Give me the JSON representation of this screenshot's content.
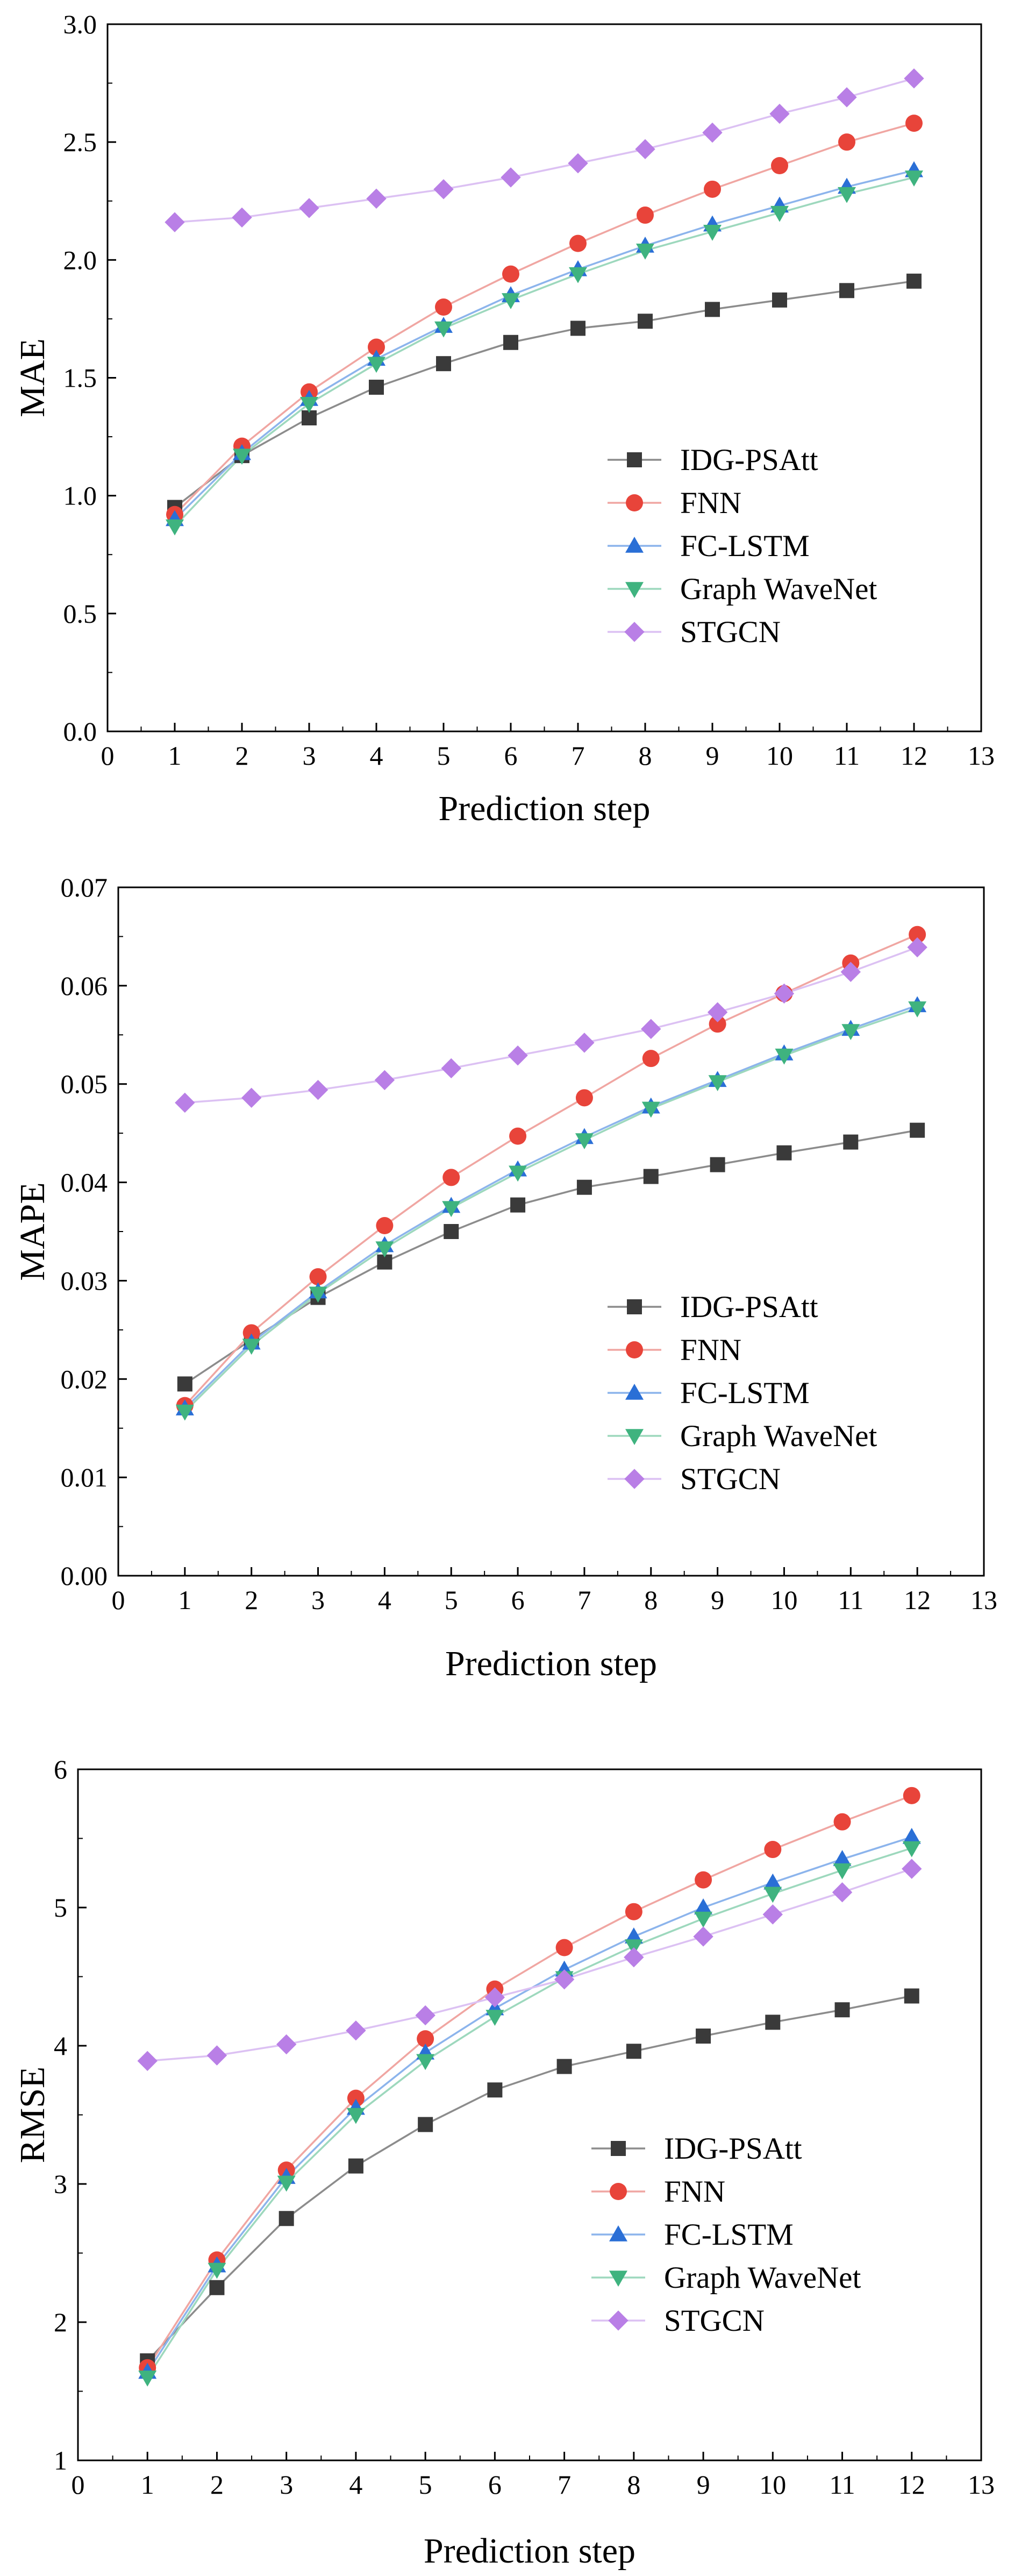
{
  "chart_data": [
    {
      "type": "line",
      "title": "",
      "xlabel": "Prediction step",
      "ylabel": "MAE",
      "xlim": [
        0,
        13
      ],
      "ylim": [
        0,
        3
      ],
      "x_ticks": [
        "0",
        "1",
        "2",
        "3",
        "4",
        "5",
        "6",
        "7",
        "8",
        "9",
        "10",
        "11",
        "12",
        "13"
      ],
      "y_ticks": [
        "0.0",
        "0.5",
        "1.0",
        "1.5",
        "2.0",
        "2.5",
        "3.0"
      ],
      "legend_position": "lower-right",
      "x": [
        1,
        2,
        3,
        4,
        5,
        6,
        7,
        8,
        9,
        10,
        11,
        12
      ],
      "series": [
        {
          "name": "IDG-PSAtt",
          "marker": "square",
          "color": "#3a3a3a",
          "line_color": "#8c8c8c",
          "values": [
            0.95,
            1.17,
            1.33,
            1.46,
            1.56,
            1.65,
            1.71,
            1.74,
            1.79,
            1.83,
            1.87,
            1.91
          ]
        },
        {
          "name": "FNN",
          "marker": "circle",
          "color": "#e8443a",
          "line_color": "#f0a6a2",
          "values": [
            0.92,
            1.21,
            1.44,
            1.63,
            1.8,
            1.94,
            2.07,
            2.19,
            2.3,
            2.4,
            2.5,
            2.58
          ]
        },
        {
          "name": "FC-LSTM",
          "marker": "triangle-up",
          "color": "#2a6fd6",
          "line_color": "#8cb4ec",
          "values": [
            0.9,
            1.18,
            1.41,
            1.58,
            1.72,
            1.85,
            1.96,
            2.06,
            2.15,
            2.23,
            2.31,
            2.38
          ]
        },
        {
          "name": "Graph WaveNet",
          "marker": "triangle-down",
          "color": "#3fb37f",
          "line_color": "#9dd8bd",
          "values": [
            0.87,
            1.17,
            1.39,
            1.56,
            1.71,
            1.83,
            1.94,
            2.04,
            2.12,
            2.2,
            2.28,
            2.35
          ]
        },
        {
          "name": "STGCN",
          "marker": "diamond",
          "color": "#b97fe6",
          "line_color": "#dcc1f3",
          "values": [
            2.16,
            2.18,
            2.22,
            2.26,
            2.3,
            2.35,
            2.41,
            2.47,
            2.54,
            2.62,
            2.69,
            2.77
          ]
        }
      ]
    },
    {
      "type": "line",
      "title": "",
      "xlabel": "Prediction step",
      "ylabel": "MAPE",
      "xlim": [
        0,
        13
      ],
      "ylim": [
        0,
        0.07
      ],
      "x_ticks": [
        "0",
        "1",
        "2",
        "3",
        "4",
        "5",
        "6",
        "7",
        "8",
        "9",
        "10",
        "11",
        "12",
        "13"
      ],
      "y_ticks": [
        "0.00",
        "0.01",
        "0.02",
        "0.03",
        "0.04",
        "0.05",
        "0.06",
        "0.07"
      ],
      "legend_position": "lower-right",
      "x": [
        1,
        2,
        3,
        4,
        5,
        6,
        7,
        8,
        9,
        10,
        11,
        12
      ],
      "series": [
        {
          "name": "IDG-PSAtt",
          "marker": "square",
          "color": "#3a3a3a",
          "line_color": "#8c8c8c",
          "values": [
            0.0195,
            0.024,
            0.0283,
            0.0319,
            0.035,
            0.0377,
            0.0395,
            0.0406,
            0.0418,
            0.043,
            0.0441,
            0.0453
          ]
        },
        {
          "name": "FNN",
          "marker": "circle",
          "color": "#e8443a",
          "line_color": "#f0a6a2",
          "values": [
            0.0173,
            0.0247,
            0.0304,
            0.0356,
            0.0405,
            0.0447,
            0.0486,
            0.0526,
            0.0561,
            0.0592,
            0.0623,
            0.0652
          ]
        },
        {
          "name": "FC-LSTM",
          "marker": "triangle-up",
          "color": "#2a6fd6",
          "line_color": "#8cb4ec",
          "values": [
            0.017,
            0.0237,
            0.0289,
            0.0336,
            0.0376,
            0.0413,
            0.0446,
            0.0477,
            0.0504,
            0.0531,
            0.0556,
            0.058
          ]
        },
        {
          "name": "Graph WaveNet",
          "marker": "triangle-down",
          "color": "#3fb37f",
          "line_color": "#9dd8bd",
          "values": [
            0.0167,
            0.0234,
            0.0287,
            0.0333,
            0.0374,
            0.041,
            0.0443,
            0.0475,
            0.0502,
            0.0529,
            0.0554,
            0.0577
          ]
        },
        {
          "name": "STGCN",
          "marker": "diamond",
          "color": "#b97fe6",
          "line_color": "#dcc1f3",
          "values": [
            0.0481,
            0.0486,
            0.0494,
            0.0504,
            0.0516,
            0.0529,
            0.0542,
            0.0556,
            0.0573,
            0.0592,
            0.0614,
            0.0639
          ]
        }
      ]
    },
    {
      "type": "line",
      "title": "",
      "xlabel": "Prediction step",
      "ylabel": "RMSE",
      "xlim": [
        0,
        13
      ],
      "ylim": [
        1,
        6
      ],
      "x_ticks": [
        "0",
        "1",
        "2",
        "3",
        "4",
        "5",
        "6",
        "7",
        "8",
        "9",
        "10",
        "11",
        "12",
        "13"
      ],
      "y_ticks": [
        "1",
        "2",
        "3",
        "4",
        "5",
        "6"
      ],
      "legend_position": "lower-right",
      "x": [
        1,
        2,
        3,
        4,
        5,
        6,
        7,
        8,
        9,
        10,
        11,
        12
      ],
      "series": [
        {
          "name": "IDG-PSAtt",
          "marker": "square",
          "color": "#3a3a3a",
          "line_color": "#8c8c8c",
          "values": [
            1.72,
            2.25,
            2.75,
            3.13,
            3.43,
            3.68,
            3.85,
            3.96,
            4.07,
            4.17,
            4.26,
            4.36
          ]
        },
        {
          "name": "FNN",
          "marker": "circle",
          "color": "#e8443a",
          "line_color": "#f0a6a2",
          "values": [
            1.67,
            2.45,
            3.1,
            3.62,
            4.05,
            4.41,
            4.71,
            4.97,
            5.2,
            5.42,
            5.62,
            5.81
          ]
        },
        {
          "name": "FC-LSTM",
          "marker": "triangle-up",
          "color": "#2a6fd6",
          "line_color": "#8cb4ec",
          "values": [
            1.64,
            2.41,
            3.05,
            3.55,
            3.95,
            4.27,
            4.55,
            4.79,
            5.0,
            5.18,
            5.35,
            5.51
          ]
        },
        {
          "name": "Graph WaveNet",
          "marker": "triangle-down",
          "color": "#3fb37f",
          "line_color": "#9dd8bd",
          "values": [
            1.6,
            2.38,
            3.01,
            3.5,
            3.89,
            4.21,
            4.49,
            4.72,
            4.92,
            5.1,
            5.27,
            5.43
          ]
        },
        {
          "name": "STGCN",
          "marker": "diamond",
          "color": "#b97fe6",
          "line_color": "#dcc1f3",
          "values": [
            3.89,
            3.93,
            4.01,
            4.11,
            4.22,
            4.35,
            4.48,
            4.64,
            4.79,
            4.95,
            5.11,
            5.28
          ]
        }
      ]
    }
  ]
}
